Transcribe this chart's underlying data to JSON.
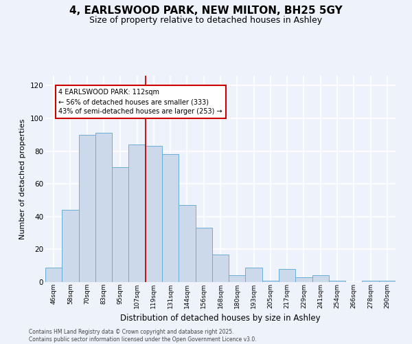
{
  "title": "4, EARLSWOOD PARK, NEW MILTON, BH25 5GY",
  "subtitle": "Size of property relative to detached houses in Ashley",
  "xlabel": "Distribution of detached houses by size in Ashley",
  "ylabel": "Number of detached properties",
  "categories": [
    "46sqm",
    "58sqm",
    "70sqm",
    "83sqm",
    "95sqm",
    "107sqm",
    "119sqm",
    "131sqm",
    "144sqm",
    "156sqm",
    "168sqm",
    "180sqm",
    "193sqm",
    "205sqm",
    "217sqm",
    "229sqm",
    "241sqm",
    "254sqm",
    "266sqm",
    "278sqm",
    "290sqm"
  ],
  "values": [
    9,
    44,
    90,
    91,
    70,
    84,
    83,
    78,
    47,
    33,
    17,
    4,
    9,
    1,
    8,
    3,
    4,
    1,
    0,
    1,
    1
  ],
  "bar_color": "#ccd9ea",
  "bar_edge_color": "#6baed6",
  "background_color": "#eef2fb",
  "grid_color": "#ffffff",
  "annotation_text": "4 EARLSWOOD PARK: 112sqm\n← 56% of detached houses are smaller (333)\n43% of semi-detached houses are larger (253) →",
  "annotation_box_color": "#ffffff",
  "annotation_box_edge_color": "#cc0000",
  "vline_color": "#cc0000",
  "vline_x": 5.5,
  "ylim": [
    0,
    126
  ],
  "yticks": [
    0,
    20,
    40,
    60,
    80,
    100,
    120
  ],
  "footer": "Contains HM Land Registry data © Crown copyright and database right 2025.\nContains public sector information licensed under the Open Government Licence v3.0.",
  "title_fontsize": 11,
  "subtitle_fontsize": 9,
  "tick_fontsize": 6.5,
  "ylabel_fontsize": 8,
  "xlabel_fontsize": 8.5,
  "annotation_fontsize": 7,
  "footer_fontsize": 5.5
}
